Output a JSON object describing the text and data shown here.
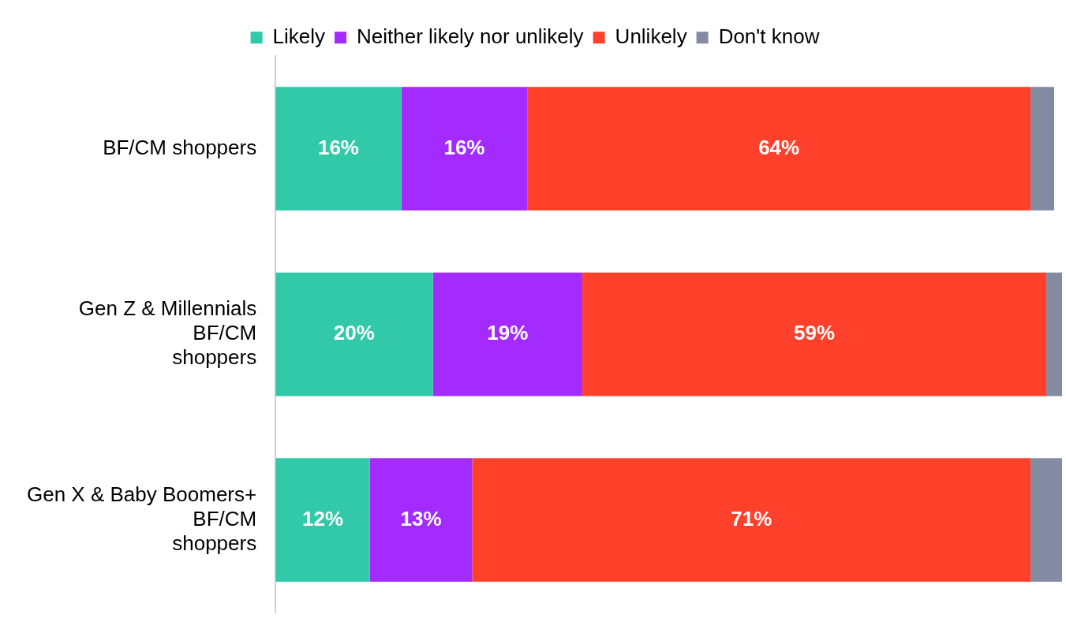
{
  "chart_data": {
    "type": "bar",
    "orientation": "horizontal",
    "stacked": true,
    "categories": [
      "BF/CM shoppers",
      "Gen Z & Millennials\nBF/CM\nshoppers",
      "Gen X & Baby Boomers+\nBF/CM\nshoppers"
    ],
    "series": [
      {
        "name": "Likely",
        "color": "#31c9a8",
        "values": [
          16,
          20,
          12
        ],
        "value_labels": [
          "16%",
          "20%",
          "12%"
        ]
      },
      {
        "name": "Neither likely nor unlikely",
        "color": "#a42bff",
        "values": [
          16,
          19,
          13
        ],
        "value_labels": [
          "16%",
          "19%",
          "13%"
        ]
      },
      {
        "name": "Unlikely",
        "color": "#ff412c",
        "values": [
          64,
          59,
          71
        ],
        "value_labels": [
          "64%",
          "59%",
          "71%"
        ]
      },
      {
        "name": "Don't know",
        "color": "#838ba3",
        "values": [
          3,
          2,
          4
        ],
        "value_labels": [
          null,
          null,
          null
        ]
      }
    ],
    "xlim": [
      0,
      100
    ],
    "tick_labels": "y",
    "grid": false,
    "legend": "top"
  }
}
